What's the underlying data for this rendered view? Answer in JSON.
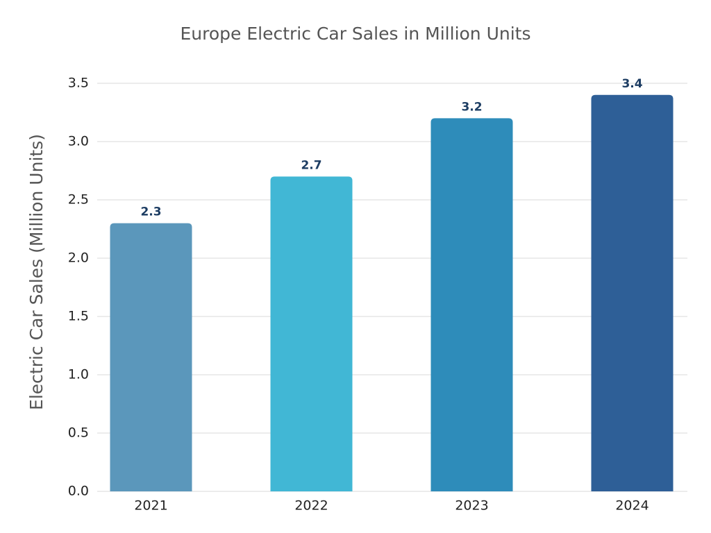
{
  "chart_data": {
    "type": "bar",
    "title": "Europe Electric Car Sales in Million Units",
    "y_label": "Electric Car Sales (Million Units)",
    "categories": [
      "2021",
      "2022",
      "2023",
      "2024"
    ],
    "values": [
      2.3,
      2.7,
      3.2,
      3.4
    ],
    "colors": [
      "#5b97bb",
      "#41b7d5",
      "#2e8cba",
      "#2e5f97"
    ],
    "ylim": [
      0,
      3.5
    ],
    "yticks": [
      {
        "value": 0,
        "label": "0.0"
      },
      0.5,
      {
        "value": 1,
        "label": "1.0"
      },
      1.5,
      {
        "value": 2,
        "label": "2.0"
      },
      2.5,
      {
        "value": 3,
        "label": "3.0"
      },
      3.5
    ],
    "grid": true
  }
}
